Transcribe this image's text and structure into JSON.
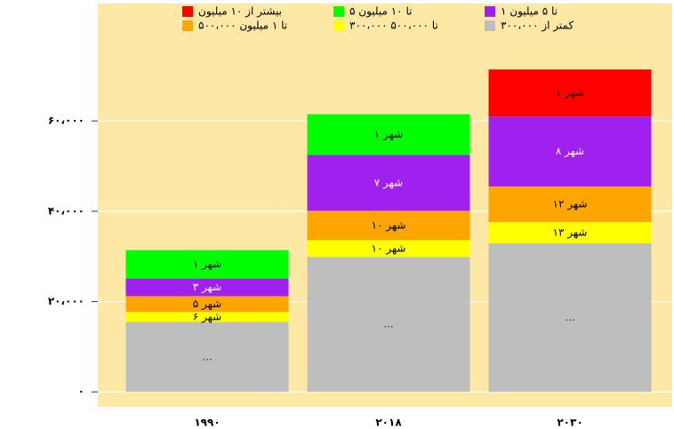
{
  "chart_data": {
    "type": "stacked_bar",
    "categories": [
      "۱۹۹۰",
      "۲۰۱۸",
      "۲۰۳۰"
    ],
    "series": [
      {
        "name": "کمتر از ۳۰۰،۰۰۰",
        "color": "#bebebe",
        "label_color": "#333333",
        "values": [
          15500,
          29900,
          32900
        ],
        "city_labels": [
          "...",
          "...",
          "..."
        ]
      },
      {
        "name": "۳۰۰،۰۰۰ تا ۵۰۰،۰۰۰",
        "color": "#ffff00",
        "label_color": "#000000",
        "values": [
          2200,
          3700,
          4700
        ],
        "city_labels": [
          "۶ شهر",
          "۱۰ شهر",
          "۱۳ شهر"
        ]
      },
      {
        "name": "۵۰۰،۰۰۰ تا ۱ میلیون",
        "color": "#ffa500",
        "label_color": "#000000",
        "values": [
          3500,
          6500,
          7900
        ],
        "city_labels": [
          "۵ شهر",
          "۱۰ شهر",
          "۱۲ شهر"
        ]
      },
      {
        "name": "۱ تا ۵ میلیون",
        "color": "#a020f0",
        "label_color": "#ffffff",
        "values": [
          3900,
          12400,
          15500
        ],
        "city_labels": [
          "۳ شهر",
          "۷ شهر",
          "۸ شهر"
        ]
      },
      {
        "name": "۵ تا ۱۰ میلیون",
        "color": "#00ff00",
        "label_color": "#000000",
        "values": [
          6300,
          9000,
          null
        ],
        "city_labels": [
          "۱ شهر",
          "۱ شهر",
          null
        ]
      },
      {
        "name": "بیشتر از ۱۰ میلیون",
        "color": "#ff0000",
        "label_color": "#000000",
        "values": [
          null,
          null,
          10400
        ],
        "city_labels": [
          null,
          null,
          "۱ شهر"
        ]
      }
    ],
    "ylim": [
      -3300,
      86000
    ],
    "yticks": [
      {
        "value": 0,
        "label": "۰"
      },
      {
        "value": 20000,
        "label": "۲۰،۰۰۰"
      },
      {
        "value": 40000,
        "label": "۴۰،۰۰۰"
      },
      {
        "value": 60000,
        "label": "۶۰،۰۰۰"
      }
    ],
    "grid": true,
    "legend": "top"
  }
}
